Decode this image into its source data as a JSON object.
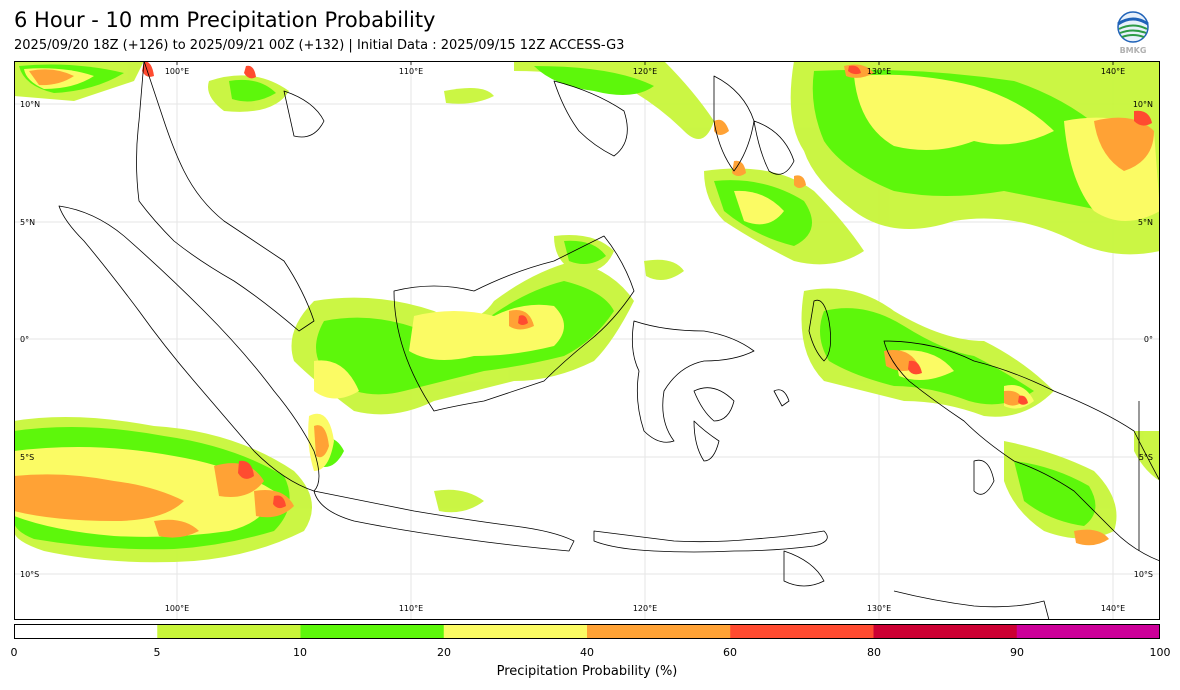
{
  "header": {
    "title": "6 Hour - 10 mm Precipitation Probability",
    "subtitle": "2025/09/20 18Z (+126) to 2025/09/21 00Z (+132) | Initial Data : 2025/09/15 12Z ACCESS-G3"
  },
  "logo": {
    "text": "BMKG",
    "icon": "bmkg-logo"
  },
  "map": {
    "lon_range": [
      93,
      142
    ],
    "lat_range": [
      -12,
      12
    ],
    "lon_labels": [
      "100°E",
      "110°E",
      "120°E",
      "130°E",
      "140°E"
    ],
    "lat_labels": [
      "10°N",
      "5°N",
      "0°",
      "5°S",
      "10°S"
    ],
    "grid": true
  },
  "colorbar": {
    "label": "Precipitation Probability (%)",
    "ticks": [
      "0",
      "5",
      "10",
      "20",
      "40",
      "60",
      "80",
      "90",
      "100"
    ],
    "colors": [
      "#ffffff",
      "#c8f53a",
      "#5df70b",
      "#fbfb64",
      "#ffa235",
      "#ff4b30",
      "#cc0033",
      "#cc0099"
    ]
  }
}
